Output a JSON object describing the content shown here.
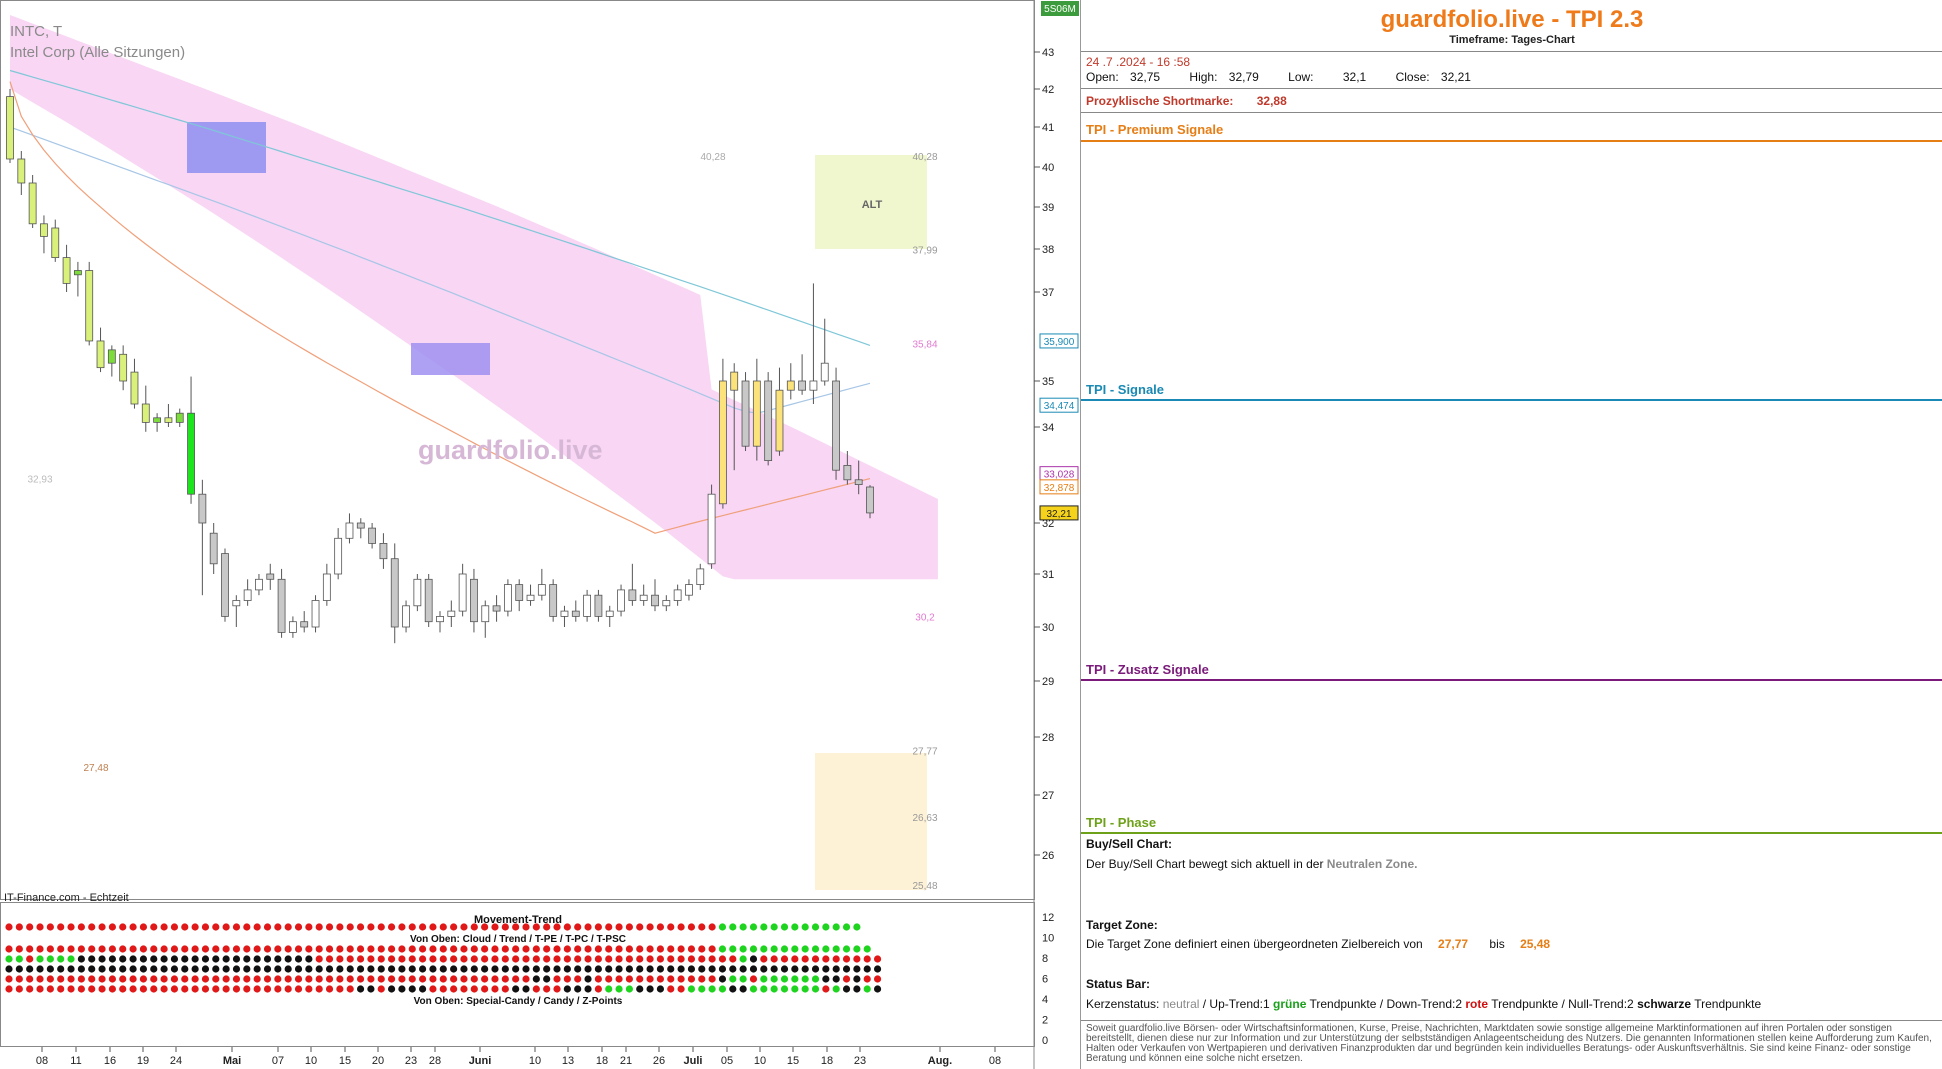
{
  "chart_header": {
    "symbol": "INTC, T",
    "name": "Intel Corp (Alle Sitzungen)",
    "watermark": "guardfolio.live",
    "source": "IT-Finance.com - Echtzeit",
    "top_badge": "5S06M"
  },
  "chart_data": {
    "type": "candlestick",
    "y_ticks": [
      43,
      42,
      41,
      40,
      39,
      38,
      37,
      35,
      34,
      32,
      31,
      30,
      29,
      28,
      27,
      26
    ],
    "ylim": [
      25.6,
      43.6
    ],
    "x_tick_labels": [
      "08",
      "11",
      "16",
      "19",
      "24",
      "Mai",
      "07",
      "10",
      "15",
      "20",
      "23",
      "28",
      "Juni",
      "10",
      "13",
      "18",
      "21",
      "26",
      "Juli",
      "05",
      "10",
      "15",
      "18",
      "23",
      "Aug.",
      "08"
    ],
    "candles": [
      {
        "o": 41.8,
        "h": 42.0,
        "l": 40.1,
        "c": 40.2
      },
      {
        "o": 40.2,
        "h": 40.4,
        "l": 39.3,
        "c": 39.6
      },
      {
        "o": 39.6,
        "h": 39.8,
        "l": 38.5,
        "c": 38.6
      },
      {
        "o": 38.6,
        "h": 38.8,
        "l": 37.9,
        "c": 38.3
      },
      {
        "o": 38.5,
        "h": 38.7,
        "l": 37.7,
        "c": 37.8
      },
      {
        "o": 37.8,
        "h": 38.1,
        "l": 37.0,
        "c": 37.2
      },
      {
        "o": 37.4,
        "h": 37.7,
        "l": 36.9,
        "c": 37.5
      },
      {
        "o": 37.5,
        "h": 37.7,
        "l": 35.8,
        "c": 35.9
      },
      {
        "o": 35.9,
        "h": 36.2,
        "l": 35.2,
        "c": 35.3
      },
      {
        "o": 35.4,
        "h": 35.8,
        "l": 35.1,
        "c": 35.7
      },
      {
        "o": 35.6,
        "h": 35.8,
        "l": 34.8,
        "c": 35.0
      },
      {
        "o": 35.2,
        "h": 35.5,
        "l": 34.4,
        "c": 34.5
      },
      {
        "o": 34.5,
        "h": 34.9,
        "l": 33.9,
        "c": 34.1
      },
      {
        "o": 34.1,
        "h": 34.3,
        "l": 33.9,
        "c": 34.2
      },
      {
        "o": 34.2,
        "h": 34.5,
        "l": 34.0,
        "c": 34.1
      },
      {
        "o": 34.1,
        "h": 34.4,
        "l": 34.0,
        "c": 34.3
      },
      {
        "o": 34.3,
        "h": 35.1,
        "l": 32.4,
        "c": 32.6
      },
      {
        "o": 32.6,
        "h": 32.9,
        "l": 30.6,
        "c": 32.0
      },
      {
        "o": 31.8,
        "h": 32.0,
        "l": 31.0,
        "c": 31.2
      },
      {
        "o": 31.4,
        "h": 31.5,
        "l": 30.1,
        "c": 30.2
      },
      {
        "o": 30.4,
        "h": 30.6,
        "l": 30.0,
        "c": 30.5
      },
      {
        "o": 30.5,
        "h": 30.9,
        "l": 30.4,
        "c": 30.7
      },
      {
        "o": 30.7,
        "h": 31.0,
        "l": 30.6,
        "c": 30.9
      },
      {
        "o": 31.0,
        "h": 31.2,
        "l": 30.7,
        "c": 30.9
      },
      {
        "o": 30.9,
        "h": 31.1,
        "l": 29.8,
        "c": 29.9
      },
      {
        "o": 29.9,
        "h": 30.2,
        "l": 29.8,
        "c": 30.1
      },
      {
        "o": 30.1,
        "h": 30.3,
        "l": 29.9,
        "c": 30.0
      },
      {
        "o": 30.0,
        "h": 30.6,
        "l": 29.9,
        "c": 30.5
      },
      {
        "o": 30.5,
        "h": 31.2,
        "l": 30.4,
        "c": 31.0
      },
      {
        "o": 31.0,
        "h": 31.9,
        "l": 30.9,
        "c": 31.7
      },
      {
        "o": 31.7,
        "h": 32.2,
        "l": 31.6,
        "c": 32.0
      },
      {
        "o": 32.0,
        "h": 32.1,
        "l": 31.7,
        "c": 31.9
      },
      {
        "o": 31.9,
        "h": 32.0,
        "l": 31.5,
        "c": 31.6
      },
      {
        "o": 31.6,
        "h": 31.8,
        "l": 31.1,
        "c": 31.3
      },
      {
        "o": 31.3,
        "h": 31.6,
        "l": 29.7,
        "c": 30.0
      },
      {
        "o": 30.0,
        "h": 30.5,
        "l": 29.9,
        "c": 30.4
      },
      {
        "o": 30.4,
        "h": 31.0,
        "l": 30.3,
        "c": 30.9
      },
      {
        "o": 30.9,
        "h": 31.0,
        "l": 30.0,
        "c": 30.1
      },
      {
        "o": 30.1,
        "h": 30.3,
        "l": 29.9,
        "c": 30.2
      },
      {
        "o": 30.2,
        "h": 30.5,
        "l": 30.0,
        "c": 30.3
      },
      {
        "o": 30.3,
        "h": 31.2,
        "l": 30.2,
        "c": 31.0
      },
      {
        "o": 30.9,
        "h": 31.1,
        "l": 29.9,
        "c": 30.1
      },
      {
        "o": 30.1,
        "h": 30.5,
        "l": 29.8,
        "c": 30.4
      },
      {
        "o": 30.4,
        "h": 30.6,
        "l": 30.1,
        "c": 30.3
      },
      {
        "o": 30.3,
        "h": 30.9,
        "l": 30.2,
        "c": 30.8
      },
      {
        "o": 30.8,
        "h": 30.9,
        "l": 30.3,
        "c": 30.5
      },
      {
        "o": 30.5,
        "h": 30.8,
        "l": 30.4,
        "c": 30.6
      },
      {
        "o": 30.6,
        "h": 31.1,
        "l": 30.5,
        "c": 30.8
      },
      {
        "o": 30.8,
        "h": 30.9,
        "l": 30.1,
        "c": 30.2
      },
      {
        "o": 30.2,
        "h": 30.4,
        "l": 30.0,
        "c": 30.3
      },
      {
        "o": 30.3,
        "h": 30.5,
        "l": 30.1,
        "c": 30.2
      },
      {
        "o": 30.2,
        "h": 30.7,
        "l": 30.1,
        "c": 30.6
      },
      {
        "o": 30.6,
        "h": 30.7,
        "l": 30.1,
        "c": 30.2
      },
      {
        "o": 30.2,
        "h": 30.4,
        "l": 30.0,
        "c": 30.3
      },
      {
        "o": 30.3,
        "h": 30.8,
        "l": 30.2,
        "c": 30.7
      },
      {
        "o": 30.7,
        "h": 31.2,
        "l": 30.4,
        "c": 30.5
      },
      {
        "o": 30.5,
        "h": 30.8,
        "l": 30.4,
        "c": 30.6
      },
      {
        "o": 30.6,
        "h": 30.9,
        "l": 30.3,
        "c": 30.4
      },
      {
        "o": 30.4,
        "h": 30.6,
        "l": 30.3,
        "c": 30.5
      },
      {
        "o": 30.5,
        "h": 30.8,
        "l": 30.4,
        "c": 30.7
      },
      {
        "o": 30.6,
        "h": 30.9,
        "l": 30.5,
        "c": 30.8
      },
      {
        "o": 30.8,
        "h": 31.2,
        "l": 30.7,
        "c": 31.1
      },
      {
        "o": 31.2,
        "h": 32.8,
        "l": 31.1,
        "c": 32.6
      },
      {
        "o": 32.4,
        "h": 35.5,
        "l": 32.3,
        "c": 35.0
      },
      {
        "o": 34.8,
        "h": 35.4,
        "l": 33.1,
        "c": 35.2
      },
      {
        "o": 35.0,
        "h": 35.2,
        "l": 33.5,
        "c": 33.6
      },
      {
        "o": 33.6,
        "h": 35.5,
        "l": 33.3,
        "c": 35.0
      },
      {
        "o": 35.0,
        "h": 35.2,
        "l": 33.2,
        "c": 33.3
      },
      {
        "o": 33.5,
        "h": 35.3,
        "l": 33.4,
        "c": 34.8
      },
      {
        "o": 34.8,
        "h": 35.4,
        "l": 34.6,
        "c": 35.0
      },
      {
        "o": 35.0,
        "h": 35.6,
        "l": 34.7,
        "c": 34.8
      },
      {
        "o": 34.8,
        "h": 37.2,
        "l": 34.5,
        "c": 35.0
      },
      {
        "o": 35.0,
        "h": 36.4,
        "l": 34.9,
        "c": 35.4
      },
      {
        "o": 35.0,
        "h": 35.3,
        "l": 32.9,
        "c": 33.1
      },
      {
        "o": 33.2,
        "h": 33.5,
        "l": 32.8,
        "c": 32.9
      },
      {
        "o": 32.9,
        "h": 33.3,
        "l": 32.6,
        "c": 32.8
      },
      {
        "o": 32.75,
        "h": 32.79,
        "l": 32.1,
        "c": 32.21
      }
    ],
    "right_labels": [
      "35,900",
      "34,474",
      "33,028",
      "32,878",
      "32,21"
    ],
    "zone_labels": [
      "40,28",
      "37,99",
      "35,84",
      "30,2",
      "27,77",
      "26,63",
      "25,48"
    ],
    "left_labels": [
      "40,28",
      "32,93",
      "27,48"
    ],
    "alt_label": "ALT",
    "sub_title": "Movement-Trend",
    "sub_label_1": "Von Oben: Cloud / Trend / T-PE / T-PC / T-PSC",
    "sub_label_2": "Von Oben: Special-Candy / Candy / Z-Points",
    "sub_y_ticks": [
      "12",
      "10",
      "8",
      "6",
      "4",
      "2",
      "0"
    ],
    "dot_rows": [
      "rrrrrrrrrrrrrrrrrrrrrrrrrrrrrrrrrrrrrrrrrrrrrrrrrrrrrrrrrrrrrrrrrrrrrgggggggggggggg",
      "rrrrrrrrrrrrrrrrrrrrrrrrrrrrrrrrrrrrrrrrrrrrrrrrrrrrrrrrrrrrrrrrrrrrrggggggggggggggg",
      "ggrggggbbbbbbbbbbbbbbbbbbbbbbbrrrrrrrrrrrrrrrrrrrrrrrrrrrrrrrrrrrrrrrrrgbrrrrrrrrrrrr",
      "bbbbbbbbbbbbbbbbbbbbbbbbbbbbbbbbbbbbbbbbbbbbbbbbbbbbbbbbbbbbbbbbbbbbbbbbbbbbbbbbbbbbb",
      "rrrrrrrrrrrrrrrrrrrrrrrrrrrrrrrrrrrrrrrrrrrrrrrrrrrbbrrrbrrrrrrrrrrrrbggrggggggbbrbrr",
      "rrrrrrrrrrrrrrrrrrrrrrrrrrrrrrrrrrbbrbbbbrrrrrrrrbbrrrbbbrgggbbbrrggggbbgggggggrgbbgbg"
    ]
  },
  "panel": {
    "title": "guardfolio.live - TPI 2.3",
    "timeframe": "Timeframe: Tages-Chart",
    "datetime": "24 .7 .2024  - 16 :58",
    "open_label": "Open:",
    "open": "32,75",
    "high_label": "High:",
    "high": "32,79",
    "low_label": "Low:",
    "low": "32,1",
    "close_label": "Close:",
    "close": "32,21",
    "short_label": "Prozyklische Shortmarke:",
    "short_value": "32,88",
    "sections": {
      "premium": "TPI - Premium Signale",
      "signale": "TPI - Signale",
      "zusatz": "TPI - Zusatz Signale",
      "phase": "TPI - Phase"
    },
    "colors": {
      "premium": "#e67e16",
      "signale": "#1a8ab4",
      "zusatz": "#7a1a7a",
      "phase": "#6ea11a"
    },
    "buysell_head": "Buy/Sell Chart:",
    "buysell_text": "Der Buy/Sell Chart bewegt sich aktuell in der",
    "buysell_zone": "Neutralen Zone.",
    "target_head": "Target Zone:",
    "target_text": "Die Target Zone definiert einen übergeordneten Zielbereich von",
    "target_from": "27,77",
    "target_mid": "bis",
    "target_to": "25,48",
    "status_head": "Status Bar:",
    "status_prefix": "Kerzenstatus:",
    "status_neutral": "neutral",
    "status_up": "/ Up-Trend:1",
    "status_green": "grüne",
    "status_tp1": "Trendpunkte",
    "status_down": "/ Down-Trend:2",
    "status_red": "rote",
    "status_tp2": "Trendpunkte",
    "status_null": "/ Null-Trend:2",
    "status_black": "schwarze",
    "status_tp3": "Trendpunkte",
    "disclaimer": "Soweit guardfolio.live Börsen- oder Wirtschaftsinformationen, Kurse, Preise, Nachrichten, Marktdaten sowie sonstige allgemeine Marktinformationen auf ihren Portalen oder sonstigen bereitstellt, dienen diese nur zur Information und zur Unterstützung der selbstständigen Anlageentscheidung des Nutzers. Die genannten Informationen stellen keine Aufforderung zum Kaufen, Halten oder Verkaufen von Wertpapieren und derivativen Finanzprodukten dar und begründen kein individuelles Beratungs- oder Auskunftsverhältnis. Sie sind keine Finanz- oder sonstige Beratung und können eine solche nicht ersetzen."
  }
}
